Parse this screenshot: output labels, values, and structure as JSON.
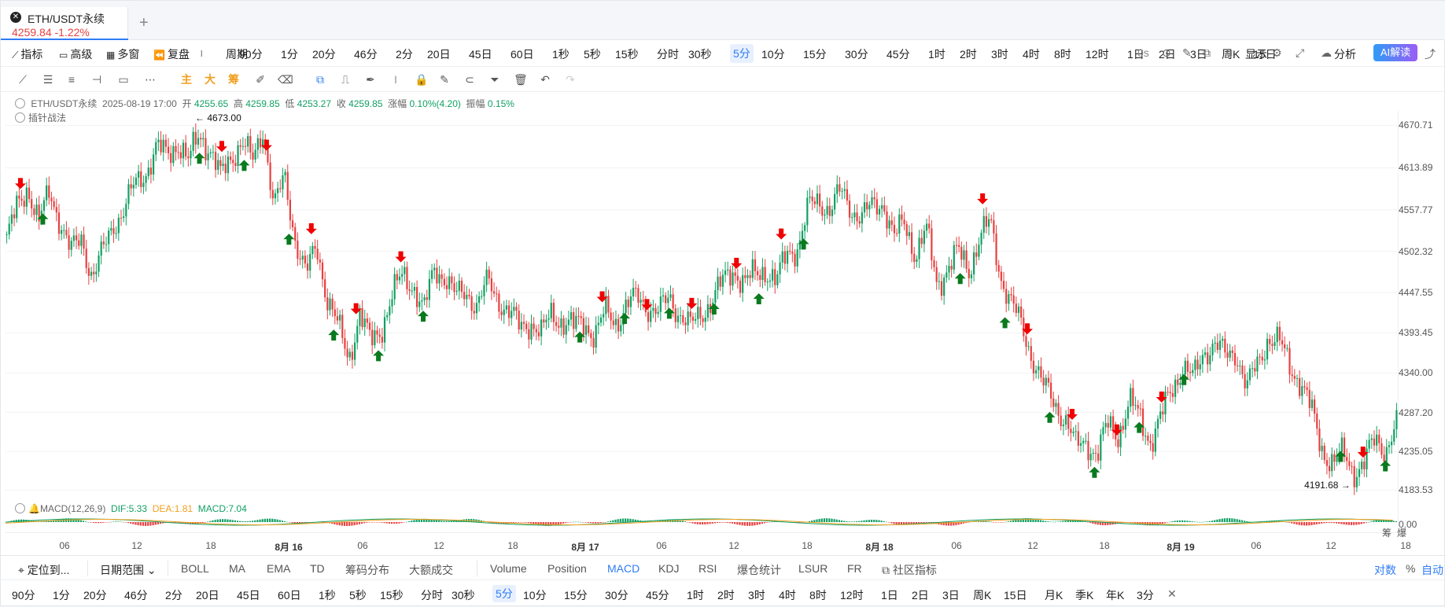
{
  "tab": {
    "symbol": "ETH/USDT永续",
    "price": "4259.84",
    "change": "-1.22%"
  },
  "toolbar": {
    "left": [
      {
        "name": "indicators",
        "icon": "chart-line-icon",
        "label": "指标"
      },
      {
        "name": "advanced",
        "icon": "layout-icon",
        "label": "高级"
      },
      {
        "name": "multi-window",
        "icon": "grid-icon",
        "label": "多窗"
      },
      {
        "name": "replay",
        "icon": "rewind-icon",
        "label": "复盘"
      },
      {
        "name": "chart-type",
        "icon": "candles-icon",
        "label": ""
      },
      {
        "name": "period",
        "icon": "",
        "label": "周期"
      }
    ],
    "periods": [
      "90分",
      "1分",
      "20分",
      "46分",
      "2分",
      "20日",
      "45日",
      "60日",
      "1秒",
      "5秒",
      "15秒",
      "分时",
      "30秒",
      "5分",
      "10分",
      "15分",
      "30分",
      "45分",
      "1时",
      "2时",
      "3时",
      "4时",
      "8时",
      "12时",
      "1日",
      "2日",
      "3日",
      "周K",
      "15日"
    ],
    "active_period": "5分",
    "right": {
      "interval": "0s",
      "display": "显示",
      "analysis": "分析",
      "ai": "AI解读"
    }
  },
  "legend": {
    "symbol": "ETH/USDT永续",
    "datetime": "2025-08-19 17:00",
    "open_label": "开",
    "open": "4255.65",
    "high_label": "高",
    "high": "4259.85",
    "low_label": "低",
    "low": "4253.27",
    "close_label": "收",
    "close": "4259.85",
    "chg_label": "涨幅",
    "chg": "0.10%(4.20)",
    "amp_label": "振幅",
    "amp": "0.15%",
    "strategy": "插针战法"
  },
  "macd": {
    "label": "MACD(12,26,9)",
    "dif": "DIF:5.33",
    "dea": "DEA:1.81",
    "macd": "MACD:7.04"
  },
  "colors": {
    "up": "#13a063",
    "down": "#e84040",
    "dea": "#f0a020",
    "accent": "#2f7cf6",
    "buy_arrow": "#0a7a1e",
    "sell_arrow": "#f00000"
  },
  "chart_data": {
    "type": "candlestick",
    "y_ticks": [
      "4670.71",
      "4613.89",
      "4557.77",
      "4502.32",
      "4447.55",
      "4393.45",
      "4340.00",
      "4287.20",
      "4235.05",
      "4183.53"
    ],
    "macd_tick": "0.00",
    "x_ticks": [
      "06",
      "12",
      "18",
      "8月 16",
      "06",
      "12",
      "18",
      "8月 17",
      "06",
      "12",
      "18",
      "8月 18",
      "06",
      "12",
      "18",
      "8月 19",
      "06",
      "12",
      "18"
    ],
    "high_marker": "4673.00",
    "low_marker": "4191.68",
    "path": [
      4520,
      4560,
      4590,
      4540,
      4580,
      4545,
      4500,
      4520,
      4470,
      4500,
      4540,
      4560,
      4590,
      4610,
      4640,
      4630,
      4650,
      4620,
      4660,
      4640,
      4600,
      4630,
      4650,
      4620,
      4670,
      4560,
      4600,
      4520,
      4470,
      4510,
      4440,
      4400,
      4360,
      4420,
      4380,
      4400,
      4440,
      4470,
      4460,
      4420,
      4480,
      4470,
      4440,
      4450,
      4430,
      4460,
      4440,
      4420,
      4400,
      4410,
      4390,
      4420,
      4410,
      4400,
      4410,
      4390,
      4420,
      4410,
      4430,
      4440,
      4430,
      4420,
      4440,
      4420,
      4400,
      4420,
      4440,
      4460,
      4480,
      4460,
      4470,
      4480,
      4460,
      4500,
      4510,
      4560,
      4570,
      4560,
      4580,
      4560,
      4550,
      4560,
      4570,
      4520,
      4540,
      4500,
      4530,
      4460,
      4480,
      4500,
      4480,
      4520,
      4540,
      4470,
      4430,
      4400,
      4360,
      4320,
      4300,
      4280,
      4240,
      4250,
      4230,
      4270,
      4260,
      4300,
      4280,
      4250,
      4280,
      4320,
      4350,
      4330,
      4370,
      4380,
      4360,
      4370,
      4320,
      4350,
      4390,
      4380,
      4350,
      4330,
      4290,
      4240,
      4220,
      4230,
      4210,
      4220,
      4250,
      4240,
      4270
    ]
  },
  "indicator_bar": {
    "locate": "定位到...",
    "date_range": "日期范围",
    "main_inds": [
      "BOLL",
      "MA",
      "EMA",
      "TD",
      "筹码分布",
      "大额成交"
    ],
    "sub_inds": [
      "Volume",
      "Position",
      "MACD",
      "KDJ",
      "RSI",
      "爆仓统计",
      "LSUR",
      "FR"
    ],
    "active_sub": "MACD",
    "community": "社区指标",
    "right": [
      "对数",
      "%",
      "自动"
    ]
  },
  "period_bar": {
    "items": [
      "90分",
      "1分",
      "20分",
      "46分",
      "2分",
      "20日",
      "45日",
      "60日",
      "1秒",
      "5秒",
      "15秒",
      "分时",
      "30秒",
      "5分",
      "10分",
      "15分",
      "30分",
      "45分",
      "1时",
      "2时",
      "3时",
      "4时",
      "8时",
      "12时",
      "1日",
      "2日",
      "3日",
      "周K",
      "15日",
      "月K",
      "季K",
      "年K",
      "3分"
    ],
    "active": "5分",
    "close": "✕"
  },
  "side_labels": [
    "筹",
    "爆"
  ]
}
